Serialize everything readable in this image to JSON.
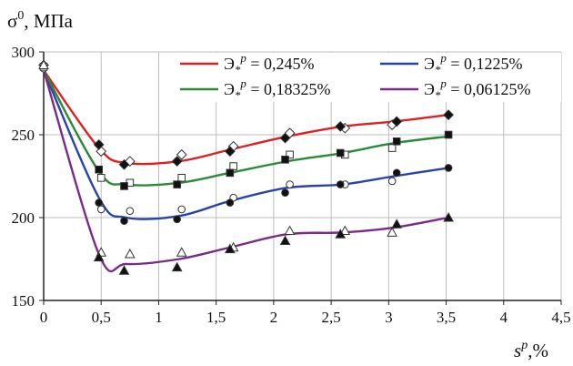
{
  "chart_data": {
    "type": "line",
    "title": "",
    "ylabel": {
      "base": "σ",
      "sup": "0",
      "rest": ", МПа"
    },
    "xlabel": {
      "base": "s",
      "sup": "p",
      "rest": ",%"
    },
    "xlim": [
      0,
      4.5
    ],
    "ylim": [
      150,
      300
    ],
    "x_ticks": [
      0,
      0.5,
      1,
      1.5,
      2,
      2.5,
      3,
      3.5,
      4,
      4.5
    ],
    "x_tick_labels": [
      "0",
      "0,5",
      "1",
      "1,5",
      "2",
      "2,5",
      "3",
      "3,5",
      "4",
      "4,5"
    ],
    "y_ticks": [
      150,
      200,
      250,
      300
    ],
    "y_tick_labels": [
      "150",
      "200",
      "250",
      "300"
    ],
    "grid": true,
    "legend_placement": "top-right",
    "series": [
      {
        "legend_sym": "Э",
        "legend_sub": "*",
        "legend_sup": "p",
        "legend_value": " = 0,245%",
        "color": "#e02020",
        "curve": [
          [
            0,
            289
          ],
          [
            0.48,
            242
          ],
          [
            0.72,
            233
          ],
          [
            1.18,
            234
          ],
          [
            1.62,
            241
          ],
          [
            2.12,
            249
          ],
          [
            2.6,
            255
          ],
          [
            3.05,
            258
          ],
          [
            3.52,
            262
          ]
        ],
        "markers_filled": {
          "shape": "diamond",
          "points": [
            [
              0.48,
              244
            ],
            [
              0.7,
              232
            ],
            [
              1.16,
              234
            ],
            [
              1.62,
              240
            ],
            [
              2.1,
              248
            ],
            [
              2.58,
              255
            ],
            [
              3.07,
              258
            ],
            [
              3.52,
              262
            ]
          ]
        },
        "markers_open": {
          "shape": "diamond",
          "points": [
            [
              0,
              292
            ],
            [
              0.5,
              240
            ],
            [
              0.75,
              234
            ],
            [
              1.2,
              238
            ],
            [
              1.65,
              243
            ],
            [
              2.14,
              251
            ],
            [
              2.62,
              254
            ],
            [
              3.03,
              256
            ]
          ]
        }
      },
      {
        "legend_sym": "Э",
        "legend_sub": "*",
        "legend_sup": "p",
        "legend_value": " = 0,1225%",
        "color": "#2844a8",
        "curve": [
          [
            0,
            289
          ],
          [
            0.48,
            212
          ],
          [
            0.72,
            200
          ],
          [
            1.18,
            201
          ],
          [
            1.62,
            210
          ],
          [
            2.12,
            218
          ],
          [
            2.6,
            220
          ],
          [
            3.05,
            225
          ],
          [
            3.52,
            230
          ]
        ],
        "markers_filled": {
          "shape": "circle",
          "points": [
            [
              0.48,
              209
            ],
            [
              0.7,
              198
            ],
            [
              1.16,
              199
            ],
            [
              1.62,
              209
            ],
            [
              2.1,
              215
            ],
            [
              2.58,
              220
            ],
            [
              3.07,
              227
            ],
            [
              3.52,
              230
            ]
          ]
        },
        "markers_open": {
          "shape": "circle",
          "points": [
            [
              0,
              290
            ],
            [
              0.5,
              205
            ],
            [
              0.75,
              204
            ],
            [
              1.2,
              205
            ],
            [
              1.65,
              212
            ],
            [
              2.14,
              220
            ],
            [
              2.62,
              220
            ],
            [
              3.03,
              222
            ]
          ]
        }
      },
      {
        "legend_sym": "Э",
        "legend_sub": "*",
        "legend_sup": "p",
        "legend_value": " = 0,18325%",
        "color": "#2a8a3a",
        "curve": [
          [
            0,
            289
          ],
          [
            0.48,
            228
          ],
          [
            0.72,
            220
          ],
          [
            1.18,
            221
          ],
          [
            1.62,
            227
          ],
          [
            2.12,
            234
          ],
          [
            2.6,
            239
          ],
          [
            3.05,
            245
          ],
          [
            3.52,
            249
          ]
        ],
        "markers_filled": {
          "shape": "square",
          "points": [
            [
              0.48,
              229
            ],
            [
              0.7,
              219
            ],
            [
              1.16,
              220
            ],
            [
              1.62,
              227
            ],
            [
              2.1,
              235
            ],
            [
              2.58,
              239
            ],
            [
              3.07,
              246
            ],
            [
              3.52,
              250
            ]
          ]
        },
        "markers_open": {
          "shape": "square",
          "points": [
            [
              0,
              291
            ],
            [
              0.5,
              224
            ],
            [
              0.75,
              221
            ],
            [
              1.2,
              224
            ],
            [
              1.65,
              231
            ],
            [
              2.14,
              238
            ],
            [
              2.62,
              238
            ],
            [
              3.03,
              242
            ]
          ]
        }
      },
      {
        "legend_sym": "Э",
        "legend_sub": "*",
        "legend_sup": "p",
        "legend_value": " = 0,06125%",
        "color": "#7a2a8a",
        "curve": [
          [
            0,
            289
          ],
          [
            0.48,
            178
          ],
          [
            0.72,
            172
          ],
          [
            1.18,
            175
          ],
          [
            1.62,
            182
          ],
          [
            2.12,
            190
          ],
          [
            2.6,
            191
          ],
          [
            3.05,
            194
          ],
          [
            3.52,
            200
          ]
        ],
        "markers_filled": {
          "shape": "triangle",
          "points": [
            [
              0.48,
              176
            ],
            [
              0.7,
              168
            ],
            [
              1.16,
              170
            ],
            [
              1.62,
              181
            ],
            [
              2.1,
              186
            ],
            [
              2.58,
              190
            ],
            [
              3.07,
              196
            ],
            [
              3.52,
              200
            ]
          ]
        },
        "markers_open": {
          "shape": "triangle",
          "points": [
            [
              0,
              292
            ],
            [
              0.5,
              179
            ],
            [
              0.75,
              178
            ],
            [
              1.2,
              179
            ],
            [
              1.65,
              182
            ],
            [
              2.14,
              192
            ],
            [
              2.62,
              192
            ],
            [
              3.03,
              191
            ]
          ]
        }
      }
    ]
  }
}
